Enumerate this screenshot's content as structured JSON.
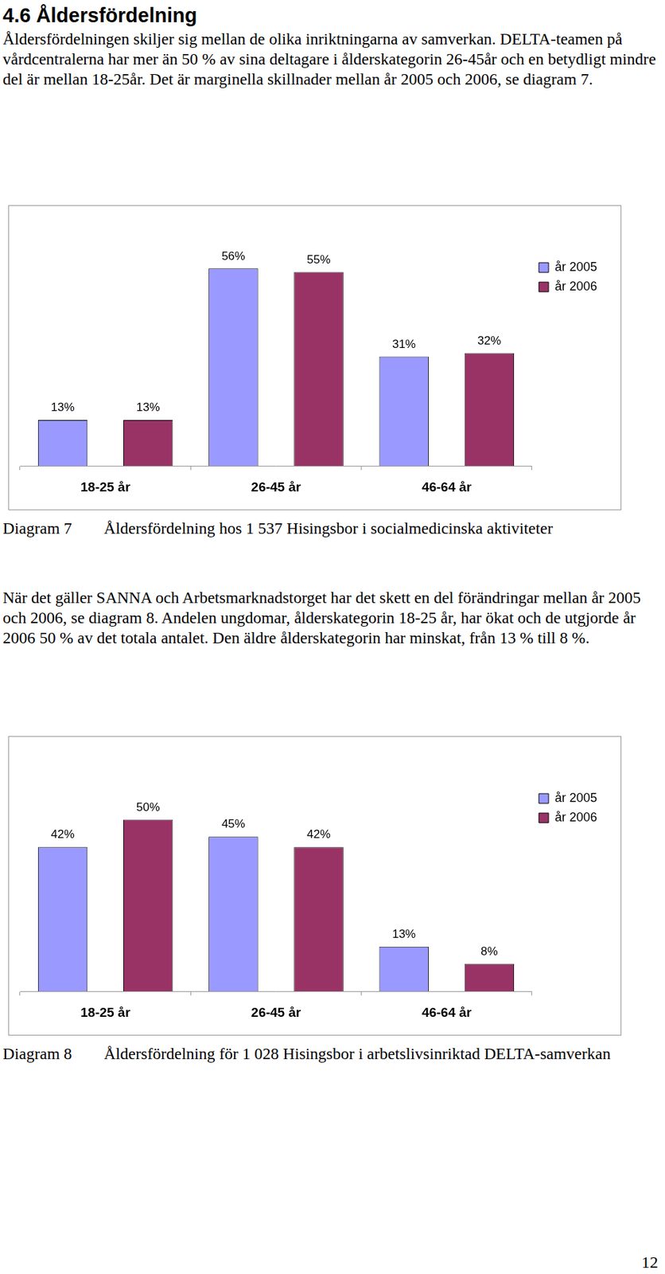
{
  "heading": "4.6 Åldersfördelning",
  "paragraphs": [
    "Åldersfördelningen skiljer sig mellan de olika inriktningarna av samverkan. DELTA-teamen på vårdcentralerna har mer än 50 % av sina deltagare i ålderskategorin 26-45år och en betydligt mindre del är mellan 18-25år. Det är marginella skillnader mellan år 2005 och 2006, se diagram 7.",
    "När det gäller SANNA och Arbetsmarknadstorget har det skett en del förändringar mellan år 2005 och 2006, se diagram 8. Andelen ungdomar, ålderskategorin 18-25 år, har ökat och de utgjorde år 2006 50 % av det totala antalet. Den äldre ålderskategorin har minskat, från 13 % till 8 %."
  ],
  "chart_data": [
    {
      "type": "bar",
      "categories": [
        "18-25 år",
        "26-45 år",
        "46-64 år"
      ],
      "series": [
        {
          "name": "år 2005",
          "color": "#9999ff",
          "values": [
            13,
            56,
            31
          ],
          "value_labels": [
            "13%",
            "56%",
            "31%"
          ]
        },
        {
          "name": "år 2006",
          "color": "#993366",
          "values": [
            13,
            55,
            32
          ],
          "value_labels": [
            "13%",
            "55%",
            "32%"
          ]
        }
      ],
      "ylim": [
        0,
        60
      ],
      "grid": false,
      "legend": "upper right",
      "data_labels": true,
      "tick_labels": "x"
    },
    {
      "type": "bar",
      "categories": [
        "18-25 år",
        "26-45 år",
        "46-64 år"
      ],
      "series": [
        {
          "name": "år 2005",
          "color": "#9999ff",
          "values": [
            42,
            45,
            13
          ],
          "value_labels": [
            "42%",
            "45%",
            "13%"
          ]
        },
        {
          "name": "år 2006",
          "color": "#993366",
          "values": [
            50,
            42,
            8
          ],
          "value_labels": [
            "50%",
            "42%",
            "8%"
          ]
        }
      ],
      "ylim": [
        0,
        60
      ],
      "grid": false,
      "legend": "upper right",
      "data_labels": true,
      "tick_labels": "x"
    }
  ],
  "captions": [
    {
      "label": "Diagram 7",
      "text": "Åldersfördelning hos 1 537 Hisingsbor i socialmedicinska aktiviteter"
    },
    {
      "label": "Diagram 8",
      "text": "Åldersfördelning för 1 028 Hisingsbor i arbetslivsinriktad DELTA-samverkan"
    }
  ],
  "page_number": 12
}
